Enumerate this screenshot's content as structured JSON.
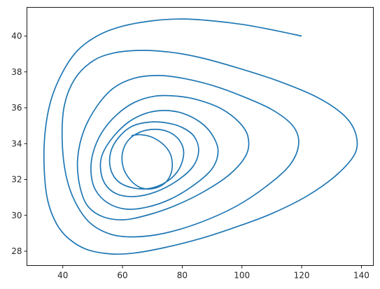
{
  "chart_data": {
    "type": "line",
    "title": "",
    "xlabel": "",
    "ylabel": "",
    "xlim": [
      28,
      144
    ],
    "ylim": [
      27.2,
      41.6
    ],
    "xticks": [
      40,
      60,
      80,
      100,
      120,
      140
    ],
    "yticks": [
      28,
      30,
      32,
      34,
      36,
      38,
      40
    ],
    "xtick_labels": [
      "40",
      "60",
      "80",
      "100",
      "120",
      "140"
    ],
    "ytick_labels": [
      "28",
      "30",
      "32",
      "34",
      "36",
      "38",
      "40"
    ],
    "grid": false,
    "legend": "none",
    "series": [
      {
        "color": "#1f77b4",
        "description_of_shape": "inward spiral (phase portrait)",
        "x": [
          120.0,
          110.0,
          100.0,
          90.0,
          80.0,
          70.0,
          60.0,
          52.0,
          45.0,
          40.0,
          36.0,
          34.0,
          33.8,
          35.0,
          38.0,
          42.0,
          48.0,
          56.0,
          64.0,
          74.0,
          86.0,
          98.0,
          110.0,
          122.0,
          132.0,
          138.0,
          138.0,
          134.0,
          125.0,
          112.0,
          98.0,
          86.0,
          76.0,
          66.0,
          57.0,
          50.0,
          44.0,
          40.5,
          39.8,
          41.0,
          44.0,
          49.0,
          56.0,
          64.0,
          74.0,
          86.0,
          98.0,
          108.0,
          116.0,
          119.0,
          117.0,
          110.0,
          100.0,
          90.0,
          80.0,
          72.0,
          64.0,
          57.0,
          51.5,
          47.0,
          45.0,
          45.5,
          48.0,
          53.0,
          60.0,
          68.0,
          77.0,
          87.0,
          96.0,
          101.5,
          102.0,
          99.0,
          93.0,
          85.0,
          78.0,
          71.0,
          64.0,
          58.0,
          53.0,
          50.0,
          49.5,
          51.0,
          55.0,
          61.0,
          68.0,
          76.0,
          84.0,
          90.0,
          92.0,
          90.0,
          86.0,
          80.0,
          74.0,
          68.0,
          62.0,
          57.0,
          53.5,
          52.6,
          54.0,
          58.0,
          64.0,
          71.0,
          78.0,
          83.5,
          85.5,
          84.0,
          80.0,
          75.0,
          69.0,
          63.0,
          58.5,
          56.0,
          56.0,
          58.5,
          63.0,
          69.0,
          75.0,
          79.0,
          80.5,
          79.0,
          75.5,
          71.0,
          66.0,
          62.0,
          60.0,
          60.2,
          62.5,
          66.0,
          70.5,
          74.5,
          76.5,
          76.3,
          74.0,
          70.0,
          66.0,
          63.0
        ],
        "y": [
          40.0,
          40.35,
          40.65,
          40.85,
          40.95,
          40.85,
          40.55,
          40.05,
          39.2,
          38.0,
          36.4,
          34.5,
          32.5,
          30.8,
          29.5,
          28.7,
          28.1,
          27.85,
          27.9,
          28.2,
          28.7,
          29.35,
          30.1,
          31.1,
          32.3,
          33.5,
          34.6,
          35.6,
          36.6,
          37.5,
          38.25,
          38.8,
          39.1,
          39.2,
          39.05,
          38.6,
          37.6,
          36.1,
          34.2,
          32.3,
          30.8,
          29.6,
          28.95,
          28.8,
          29.0,
          29.6,
          30.5,
          31.6,
          32.8,
          34.0,
          35.0,
          35.9,
          36.65,
          37.25,
          37.65,
          37.8,
          37.65,
          37.1,
          36.1,
          34.7,
          33.2,
          31.8,
          30.6,
          29.95,
          29.75,
          30.0,
          30.5,
          31.3,
          32.3,
          33.4,
          34.4,
          35.2,
          35.95,
          36.45,
          36.65,
          36.65,
          36.3,
          35.6,
          34.6,
          33.4,
          32.3,
          31.4,
          30.7,
          30.35,
          30.45,
          30.9,
          31.7,
          32.6,
          33.6,
          34.5,
          35.2,
          35.7,
          35.85,
          35.7,
          35.2,
          34.4,
          33.5,
          32.7,
          31.8,
          31.2,
          31.05,
          31.3,
          31.9,
          32.7,
          33.6,
          34.4,
          34.9,
          35.15,
          35.2,
          34.95,
          34.3,
          33.5,
          32.6,
          31.9,
          31.55,
          31.5,
          31.9,
          32.6,
          33.5,
          34.2,
          34.65,
          34.8,
          34.65,
          34.2,
          33.5,
          32.7,
          32.0,
          31.55,
          31.5,
          31.85,
          32.5,
          33.3,
          33.9,
          34.35,
          34.5,
          34.45
        ]
      }
    ]
  }
}
